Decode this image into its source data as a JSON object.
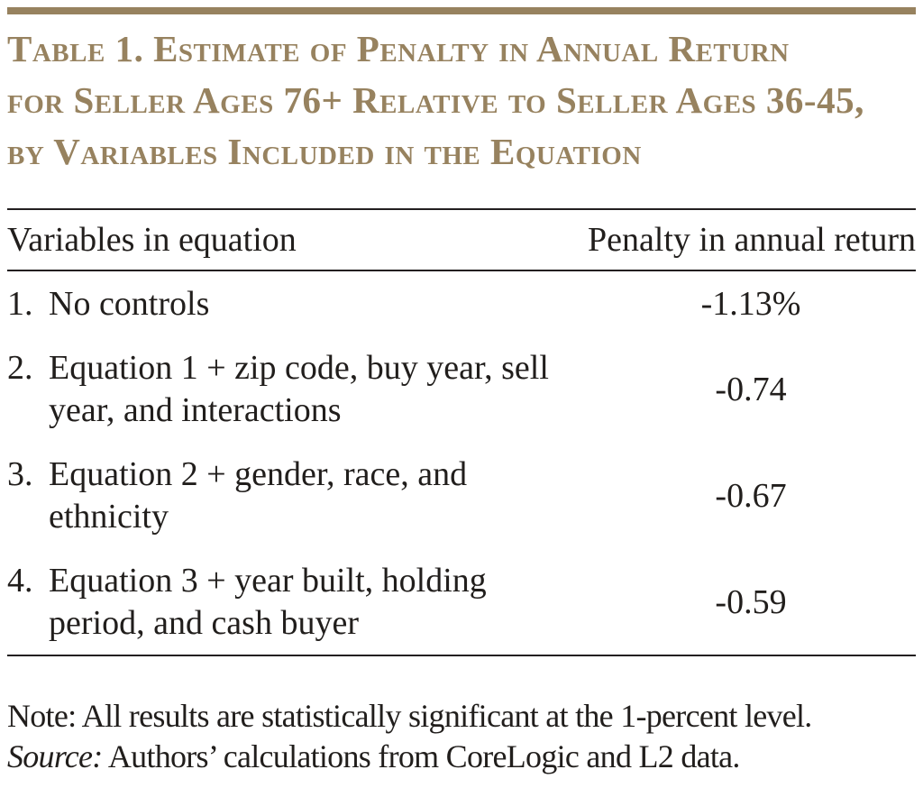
{
  "colors": {
    "accent_brown": "#97825F",
    "text": "#211E1C",
    "rule_black": "#231F20"
  },
  "title": {
    "line1": "Table 1. Estimate of Penalty in Annual Return",
    "line2": "for Seller Ages 76+ Relative to Seller Ages 36-45,",
    "line3": "by Variables Included in the Equation"
  },
  "table": {
    "header": {
      "variables": "Variables in equation",
      "penalty": "Penalty in annual return"
    },
    "rows": [
      {
        "num": "1.",
        "label": "No controls",
        "value": "-1.13%"
      },
      {
        "num": "2.",
        "label": "Equation 1 + zip code, buy year, sell year, and interactions",
        "value": "-0.74"
      },
      {
        "num": "3.",
        "label": "Equation 2 + gender, race, and ethnicity",
        "value": "-0.67"
      },
      {
        "num": "4.",
        "label": "Equation 3 + year built, holding period, and cash buyer",
        "value": "-0.59"
      }
    ]
  },
  "notes": {
    "note": "Note: All results are statistically significant at the 1-percent level.",
    "source_label": "Source:",
    "source_text": "Authors’ calculations from CoreLogic and L2 data."
  }
}
